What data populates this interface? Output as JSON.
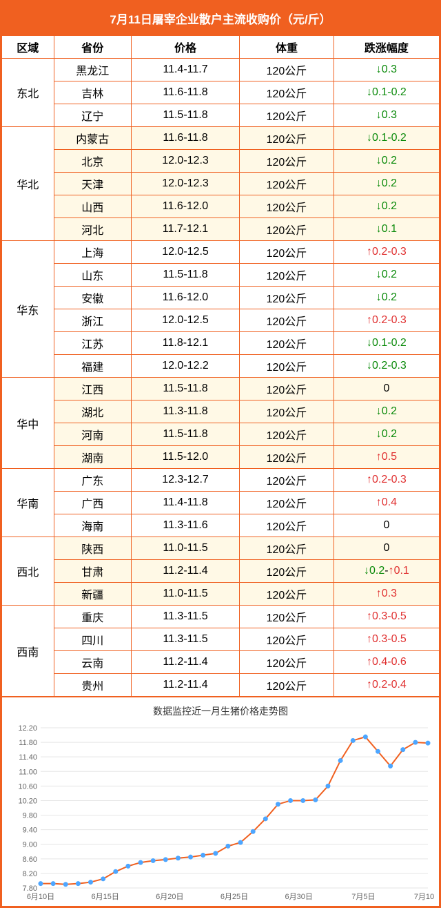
{
  "title": "7月11日屠宰企业散户主流收购价（元/斤）",
  "headers": [
    "区域",
    "省份",
    "价格",
    "体重",
    "跌涨幅度"
  ],
  "chart": {
    "title": "数据监控近一月生猪价格走势图",
    "ymin": 7.8,
    "ymax": 12.2,
    "yticks": [
      7.8,
      8.2,
      8.6,
      9.0,
      9.4,
      9.8,
      10.2,
      10.6,
      11.0,
      11.4,
      11.8,
      12.2
    ],
    "xticks": [
      "6月10日",
      "6月15日",
      "6月20日",
      "6月25日",
      "6月30日",
      "7月5日",
      "7月10日"
    ],
    "values": [
      7.92,
      7.92,
      7.9,
      7.92,
      7.96,
      8.05,
      8.25,
      8.4,
      8.5,
      8.55,
      8.58,
      8.62,
      8.65,
      8.7,
      8.75,
      8.95,
      9.05,
      9.35,
      9.7,
      10.1,
      10.2,
      10.2,
      10.22,
      10.6,
      11.3,
      11.85,
      11.95,
      11.55,
      11.15,
      11.6,
      11.8,
      11.78
    ],
    "line_color": "#f06020",
    "dot_color": "#4da6ff",
    "grid_color": "#e5e5e5"
  },
  "regions": [
    {
      "name": "东北",
      "hl": false,
      "rows": [
        {
          "p": "黑龙江",
          "price": "11.4-11.7",
          "w": "120公斤",
          "dir": "down",
          "chg": "0.3"
        },
        {
          "p": "吉林",
          "price": "11.6-11.8",
          "w": "120公斤",
          "dir": "down",
          "chg": "0.1-0.2"
        },
        {
          "p": "辽宁",
          "price": "11.5-11.8",
          "w": "120公斤",
          "dir": "down",
          "chg": "0.3"
        }
      ]
    },
    {
      "name": "华北",
      "hl": true,
      "rows": [
        {
          "p": "内蒙古",
          "price": "11.6-11.8",
          "w": "120公斤",
          "dir": "down",
          "chg": "0.1-0.2"
        },
        {
          "p": "北京",
          "price": "12.0-12.3",
          "w": "120公斤",
          "dir": "down",
          "chg": "0.2"
        },
        {
          "p": "天津",
          "price": "12.0-12.3",
          "w": "120公斤",
          "dir": "down",
          "chg": "0.2"
        },
        {
          "p": "山西",
          "price": "11.6-12.0",
          "w": "120公斤",
          "dir": "down",
          "chg": "0.2"
        },
        {
          "p": "河北",
          "price": "11.7-12.1",
          "w": "120公斤",
          "dir": "down",
          "chg": "0.1"
        }
      ]
    },
    {
      "name": "华东",
      "hl": false,
      "rows": [
        {
          "p": "上海",
          "price": "12.0-12.5",
          "w": "120公斤",
          "dir": "up",
          "chg": "0.2-0.3"
        },
        {
          "p": "山东",
          "price": "11.5-11.8",
          "w": "120公斤",
          "dir": "down",
          "chg": "0.2"
        },
        {
          "p": "安徽",
          "price": "11.6-12.0",
          "w": "120公斤",
          "dir": "down",
          "chg": "0.2"
        },
        {
          "p": "浙江",
          "price": "12.0-12.5",
          "w": "120公斤",
          "dir": "up",
          "chg": "0.2-0.3"
        },
        {
          "p": "江苏",
          "price": "11.8-12.1",
          "w": "120公斤",
          "dir": "down",
          "chg": "0.1-0.2"
        },
        {
          "p": "福建",
          "price": "12.0-12.2",
          "w": "120公斤",
          "dir": "down",
          "chg": "0.2-0.3"
        }
      ]
    },
    {
      "name": "华中",
      "hl": true,
      "rows": [
        {
          "p": "江西",
          "price": "11.5-11.8",
          "w": "120公斤",
          "dir": "flat",
          "chg": "0"
        },
        {
          "p": "湖北",
          "price": "11.3-11.8",
          "w": "120公斤",
          "dir": "down",
          "chg": "0.2"
        },
        {
          "p": "河南",
          "price": "11.5-11.8",
          "w": "120公斤",
          "dir": "down",
          "chg": "0.2"
        },
        {
          "p": "湖南",
          "price": "11.5-12.0",
          "w": "120公斤",
          "dir": "up",
          "chg": "0.5"
        }
      ]
    },
    {
      "name": "华南",
      "hl": false,
      "rows": [
        {
          "p": "广东",
          "price": "12.3-12.7",
          "w": "120公斤",
          "dir": "up",
          "chg": "0.2-0.3"
        },
        {
          "p": "广西",
          "price": "11.4-11.8",
          "w": "120公斤",
          "dir": "up",
          "chg": "0.4"
        },
        {
          "p": "海南",
          "price": "11.3-11.6",
          "w": "120公斤",
          "dir": "flat",
          "chg": "0"
        }
      ]
    },
    {
      "name": "西北",
      "hl": true,
      "rows": [
        {
          "p": "陕西",
          "price": "11.0-11.5",
          "w": "120公斤",
          "dir": "flat",
          "chg": "0"
        },
        {
          "p": "甘肃",
          "price": "11.2-11.4",
          "w": "120公斤",
          "dir": "mix",
          "chg": "0.2-0.1"
        },
        {
          "p": "新疆",
          "price": "11.0-11.5",
          "w": "120公斤",
          "dir": "up",
          "chg": "0.3"
        }
      ]
    },
    {
      "name": "西南",
      "hl": false,
      "rows": [
        {
          "p": "重庆",
          "price": "11.3-11.5",
          "w": "120公斤",
          "dir": "up",
          "chg": "0.3-0.5"
        },
        {
          "p": "四川",
          "price": "11.3-11.5",
          "w": "120公斤",
          "dir": "up",
          "chg": "0.3-0.5"
        },
        {
          "p": "云南",
          "price": "11.2-11.4",
          "w": "120公斤",
          "dir": "up",
          "chg": "0.4-0.6"
        },
        {
          "p": "贵州",
          "price": "11.2-11.4",
          "w": "120公斤",
          "dir": "up",
          "chg": "0.2-0.4"
        }
      ]
    }
  ]
}
